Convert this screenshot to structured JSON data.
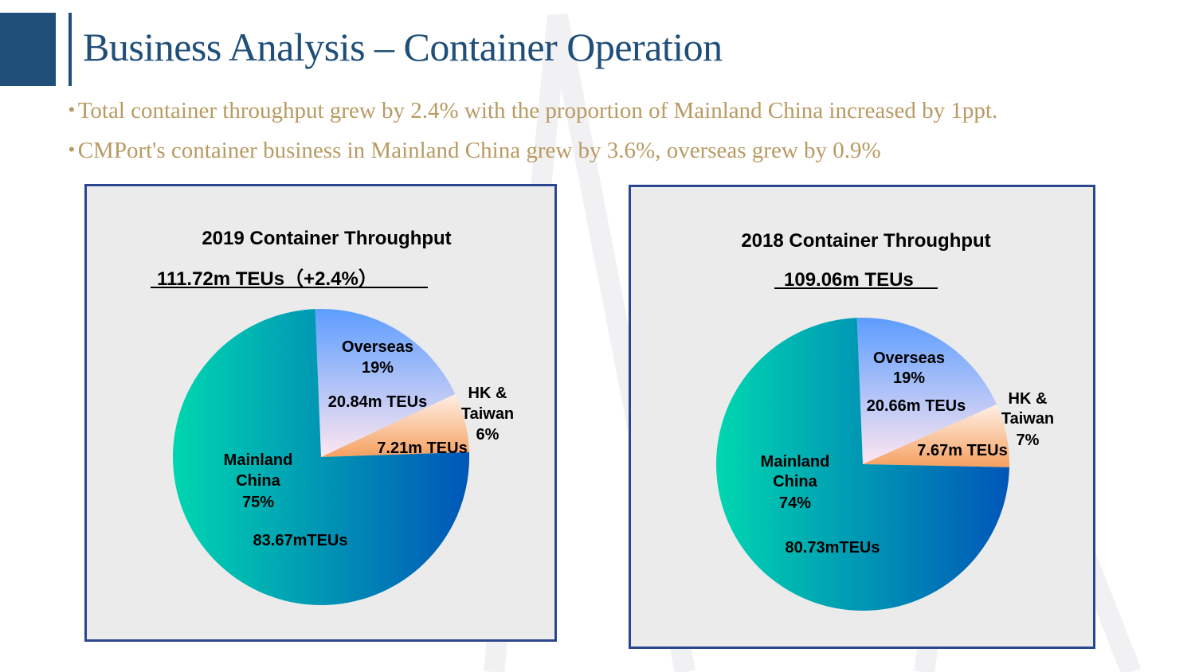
{
  "header": {
    "title": "Business Analysis  –  Container Operation"
  },
  "bullets": [
    "Total container throughput grew by 2.4% with the proportion of Mainland China increased by 1ppt.",
    "CMPort's container business in Mainland China grew by 3.6%, overseas grew by 0.9%"
  ],
  "colors": {
    "brand": "#1f4e79",
    "bullet_text": "#b89a62",
    "panel_border": "#2b4591",
    "panel_bg": "#ebebeb",
    "mainland_gradient": [
      "#00d6b0",
      "#0056b8"
    ],
    "overseas_gradient": [
      "#5c9dff",
      "#ffe6f0"
    ],
    "hk_gradient": [
      "#ffe0c0",
      "#f5a060"
    ]
  },
  "chart_data": [
    {
      "type": "pie",
      "title": "2019 Container Throughput",
      "total_label": "111.72m TEUs（+2.4%）",
      "slices": [
        {
          "name": "Overseas",
          "percent_label": "19%",
          "value": 20.84,
          "value_label": "20.84m TEUs"
        },
        {
          "name": "HK & Taiwan",
          "name_lines": [
            "HK &",
            "Taiwan"
          ],
          "percent_label": "6%",
          "value": 7.21,
          "value_label": "7.21m TEUs"
        },
        {
          "name": "Mainland China",
          "name_lines": [
            "Mainland",
            "China"
          ],
          "percent_label": "75%",
          "value": 83.67,
          "value_label": "83.67mTEUs"
        }
      ]
    },
    {
      "type": "pie",
      "title": "2018 Container Throughput",
      "total_label": "109.06m TEUs",
      "slices": [
        {
          "name": "Overseas",
          "percent_label": "19%",
          "value": 20.66,
          "value_label": "20.66m TEUs"
        },
        {
          "name": "HK & Taiwan",
          "name_lines": [
            "HK &",
            "Taiwan"
          ],
          "percent_label": "7%",
          "value": 7.67,
          "value_label": "7.67m TEUs"
        },
        {
          "name": "Mainland China",
          "name_lines": [
            "Mainland",
            "China"
          ],
          "percent_label": "74%",
          "value": 80.73,
          "value_label": "80.73mTEUs"
        }
      ]
    }
  ]
}
